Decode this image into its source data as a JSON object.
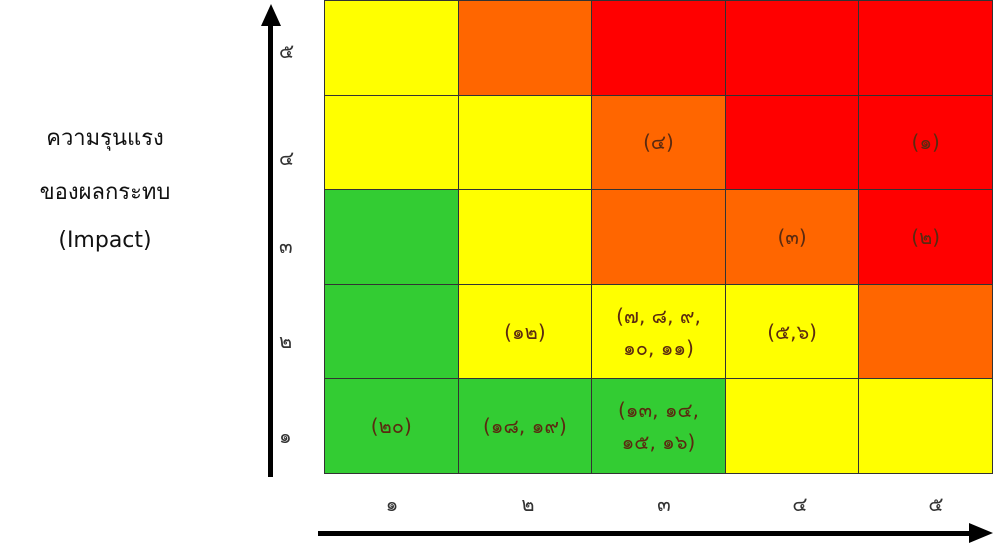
{
  "y_axis": {
    "label_lines": [
      "ความรุนแรง",
      "ของผลกระทบ",
      "(Impact)"
    ],
    "ticks": [
      "๕",
      "๔",
      "๓",
      "๒",
      "๑"
    ]
  },
  "x_axis": {
    "ticks": [
      "๑",
      "๒",
      "๓",
      "๔",
      "๕"
    ]
  },
  "matrix": {
    "rows": [
      [
        {
          "color": "yellow",
          "text": ""
        },
        {
          "color": "orange",
          "text": ""
        },
        {
          "color": "red",
          "text": ""
        },
        {
          "color": "red",
          "text": ""
        },
        {
          "color": "red",
          "text": ""
        }
      ],
      [
        {
          "color": "yellow",
          "text": ""
        },
        {
          "color": "yellow",
          "text": ""
        },
        {
          "color": "orange",
          "text": "(๔)"
        },
        {
          "color": "red",
          "text": ""
        },
        {
          "color": "red",
          "text": "(๑)"
        }
      ],
      [
        {
          "color": "green",
          "text": ""
        },
        {
          "color": "yellow",
          "text": ""
        },
        {
          "color": "orange",
          "text": ""
        },
        {
          "color": "orange",
          "text": "(๓)"
        },
        {
          "color": "red",
          "text": "(๒)"
        }
      ],
      [
        {
          "color": "green",
          "text": ""
        },
        {
          "color": "yellow",
          "text": "(๑๒)"
        },
        {
          "color": "yellow",
          "text": "(๗, ๘, ๙,\n๑๐, ๑๑)"
        },
        {
          "color": "yellow",
          "text": "(๕,๖)"
        },
        {
          "color": "orange",
          "text": ""
        }
      ],
      [
        {
          "color": "green",
          "text": "(๒๐)"
        },
        {
          "color": "green",
          "text": "(๑๘, ๑๙)"
        },
        {
          "color": "green",
          "text": "(๑๓, ๑๔,\n๑๕, ๑๖)"
        },
        {
          "color": "yellow",
          "text": ""
        },
        {
          "color": "yellow",
          "text": ""
        }
      ]
    ]
  },
  "colors": {
    "yellow": "#ffff00",
    "orange": "#ff6600",
    "red": "#ff0000",
    "green": "#33cc33"
  }
}
